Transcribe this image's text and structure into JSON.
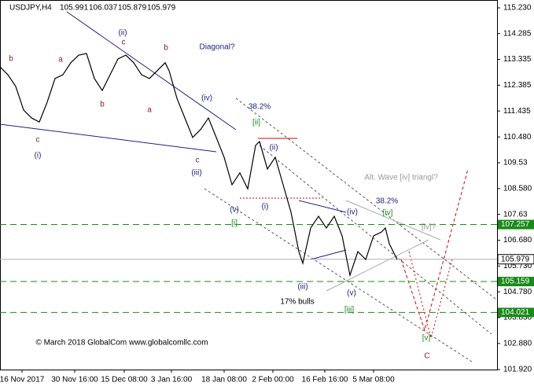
{
  "chart_data": {
    "type": "line",
    "header": {
      "symbol": "USDJPY,H4",
      "ohlc": [
        105.991,
        106.037,
        105.879,
        105.979
      ]
    },
    "x": [
      0,
      2,
      4,
      6,
      8,
      10,
      12,
      14,
      16,
      18,
      20,
      22,
      24,
      26,
      28,
      30,
      32,
      34,
      36,
      38,
      40,
      42,
      43,
      45,
      47,
      49,
      51,
      53,
      55,
      57,
      59,
      61,
      63,
      65,
      66,
      68,
      70,
      72,
      74,
      76,
      77,
      79,
      81,
      83,
      85,
      87,
      89,
      91,
      93,
      95,
      97,
      98,
      99,
      101
    ],
    "series": [
      {
        "name": "USDJPY",
        "color": "#000000",
        "values": [
          113.06,
          112.77,
          112.34,
          111.47,
          111.18,
          111.03,
          111.76,
          112.63,
          112.77,
          113.21,
          113.49,
          113.55,
          112.63,
          112.19,
          112.77,
          113.35,
          113.49,
          113.21,
          112.77,
          112.63,
          112.92,
          113.21,
          112.92,
          111.9,
          111.18,
          110.46,
          110.75,
          111.18,
          110.46,
          109.73,
          108.72,
          109.16,
          108.57,
          110.17,
          110.31,
          109.3,
          109.73,
          108.72,
          107.71,
          106.26,
          105.83,
          107.13,
          107.56,
          107.13,
          107.56,
          106.84,
          105.39,
          106.26,
          105.97,
          106.84,
          106.98,
          107.13,
          106.55,
          105.97
        ]
      }
    ],
    "xlim": [
      0,
      126.4
    ],
    "xticks": [
      {
        "value": 5.6,
        "label": "16 Nov 2017"
      },
      {
        "value": 19,
        "label": "30 Nov 16:00"
      },
      {
        "value": 31.6,
        "label": "15 Dec 08:00"
      },
      {
        "value": 43.6,
        "label": "3 Jan 16:00"
      },
      {
        "value": 57,
        "label": "18 Jan 08:00"
      },
      {
        "value": 69.4,
        "label": "2 Feb 00:00"
      },
      {
        "value": 82.6,
        "label": "16 Feb 16:00"
      },
      {
        "value": 95,
        "label": "5 Mar 08:00"
      }
    ],
    "ylim": [
      101.92,
      115.23
    ],
    "yticks": [
      {
        "value": 101.92,
        "label": "101.920"
      },
      {
        "value": 102.88,
        "label": "102.880"
      },
      {
        "value": 103.83,
        "label": "103.830"
      },
      {
        "value": 104.78,
        "label": "104.780"
      },
      {
        "value": 105.73,
        "label": "105.730"
      },
      {
        "value": 106.68,
        "label": "106.680"
      },
      107.63,
      {
        "value": 108.58,
        "label": "108.580"
      },
      109.53,
      {
        "value": 110.48,
        "label": "110.480"
      },
      111.435,
      112.385,
      113.335,
      114.285,
      {
        "value": 115.23,
        "label": "115.230"
      }
    ],
    "levels": [
      {
        "value": 107.257,
        "color": "#1a8a1a"
      },
      {
        "value": 105.159,
        "color": "#1a8a1a"
      },
      {
        "value": 104.021,
        "color": "#1a8a1a"
      }
    ],
    "current": {
      "value": 105.979,
      "color": "#b0b0b0"
    },
    "annotations": [
      {
        "text": "b",
        "color": "#8b1a1a"
      },
      {
        "text": "a",
        "color": "#8b1a1a"
      },
      {
        "text": "c",
        "color": "#8b1a1a"
      },
      {
        "text": "(ii)",
        "color": "#1a237e"
      },
      {
        "text": "b",
        "color": "#8b1a1a"
      },
      {
        "text": "b",
        "color": "#8b1a1a"
      },
      {
        "text": "a",
        "color": "#8b1a1a"
      },
      {
        "text": "Diagonal?",
        "color": "#1a237e"
      },
      {
        "text": "(iv)",
        "color": "#1a237e"
      },
      {
        "text": "38.2%",
        "color": "#1a237e"
      },
      {
        "text": "[ii]",
        "color": "#1a8a1a"
      },
      {
        "text": "c",
        "color": "#8b1a1a"
      },
      {
        "text": "(i)",
        "color": "#1a237e"
      },
      {
        "text": "c",
        "color": "#8b1a1a"
      },
      {
        "text": "(iii)",
        "color": "#1a237e"
      },
      {
        "text": "(ii)",
        "color": "#1a237e"
      },
      {
        "text": "(v)",
        "color": "#1a237e"
      },
      {
        "text": "[i]",
        "color": "#1a8a1a"
      },
      {
        "text": "(i)",
        "color": "#1a237e"
      },
      {
        "text": "Alt. Wave [iv] triangl?",
        "color": "#999999"
      },
      {
        "text": "38.2%",
        "color": "#1a237e"
      },
      {
        "text": "(iv)",
        "color": "#1a237e"
      },
      {
        "text": "[iv]",
        "color": "#1a8a1a"
      },
      {
        "text": "[iv]?",
        "color": "#999999"
      },
      {
        "text": "(iii)",
        "color": "#1a237e"
      },
      {
        "text": "17% bulls",
        "color": "#000000"
      },
      {
        "text": "(v)",
        "color": "#1a237e"
      },
      {
        "text": "[iii]",
        "color": "#1a8a1a"
      },
      {
        "text": "[v]",
        "color": "#1a8a1a"
      },
      {
        "text": "C",
        "color": "#8b1a1a"
      },
      {
        "text": "© March 2018 GlobalCom www.globalcomllc.com",
        "color": "#000000"
      }
    ]
  }
}
